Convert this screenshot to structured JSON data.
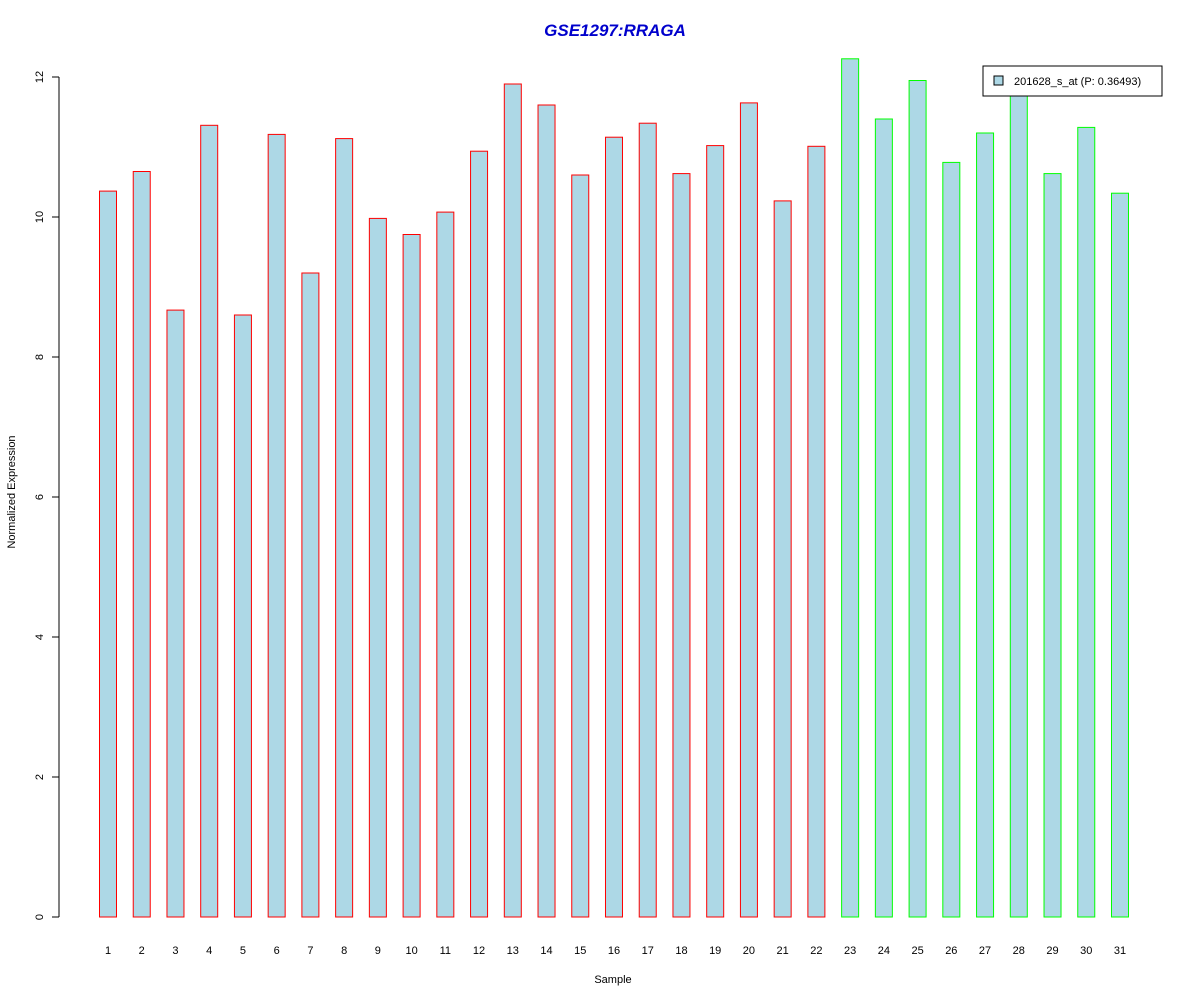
{
  "chart_data": {
    "type": "bar",
    "title": "GSE1297:RRAGA",
    "xlabel": "Sample",
    "ylabel": "Normalized Expression",
    "ylim": [
      0,
      12
    ],
    "yticks": [
      "0",
      "2",
      "4",
      "6",
      "8",
      "10",
      "12"
    ],
    "categories": [
      "1",
      "2",
      "3",
      "4",
      "5",
      "6",
      "7",
      "8",
      "9",
      "10",
      "11",
      "12",
      "13",
      "14",
      "15",
      "16",
      "17",
      "18",
      "19",
      "20",
      "21",
      "22",
      "23",
      "24",
      "25",
      "26",
      "27",
      "28",
      "29",
      "30",
      "31"
    ],
    "series": [
      {
        "name": "201628_s_at (P: 0.36493)",
        "values": [
          10.37,
          10.65,
          8.67,
          11.31,
          8.6,
          11.18,
          9.2,
          11.12,
          9.98,
          9.75,
          10.07,
          10.94,
          11.9,
          11.6,
          10.6,
          11.14,
          11.34,
          10.62,
          11.02,
          11.63,
          10.23,
          11.01,
          12.26,
          11.4,
          11.95,
          10.78,
          11.2,
          11.8,
          10.62,
          11.28,
          10.34
        ]
      }
    ],
    "bar_group": [
      1,
      1,
      1,
      1,
      1,
      1,
      1,
      1,
      1,
      1,
      1,
      1,
      1,
      1,
      1,
      1,
      1,
      1,
      1,
      1,
      1,
      1,
      2,
      2,
      2,
      2,
      2,
      2,
      2,
      2,
      2
    ],
    "legend": {
      "label": "201628_s_at (P: 0.36493)",
      "position": "top-right"
    },
    "grid": false
  },
  "colors": {
    "bar_fill": "#add8e6",
    "group1_border": "#ff0000",
    "group2_border": "#00ff00",
    "title": "#0000cc",
    "axis": "#000000"
  }
}
